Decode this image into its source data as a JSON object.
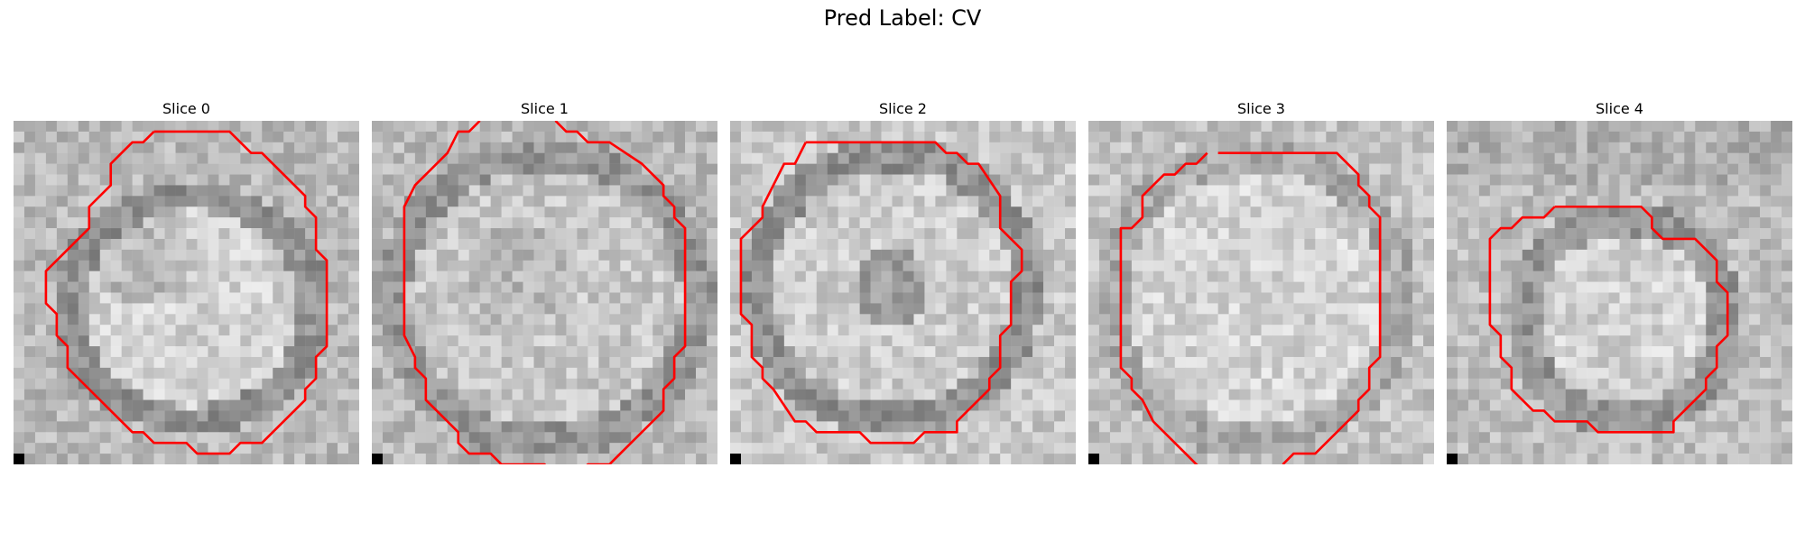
{
  "figure": {
    "title": "Pred Label: CV",
    "overlay_color": "#ff0000"
  },
  "panels": [
    {
      "label": "Slice 0",
      "seed": 11,
      "pattern": "ring-blob",
      "contour": [
        [
          13,
          1
        ],
        [
          20,
          1
        ],
        [
          22,
          3
        ],
        [
          23,
          3
        ],
        [
          27,
          7
        ],
        [
          27,
          8
        ],
        [
          28,
          9
        ],
        [
          28,
          12
        ],
        [
          29,
          13
        ],
        [
          29,
          21
        ],
        [
          28,
          22
        ],
        [
          28,
          24
        ],
        [
          27,
          25
        ],
        [
          27,
          26
        ],
        [
          23,
          30
        ],
        [
          21,
          30
        ],
        [
          20,
          31
        ],
        [
          17,
          31
        ],
        [
          16,
          30
        ],
        [
          13,
          30
        ],
        [
          12,
          29
        ],
        [
          11,
          29
        ],
        [
          6,
          24
        ],
        [
          5,
          23
        ],
        [
          5,
          21
        ],
        [
          4,
          20
        ],
        [
          4,
          18
        ],
        [
          3,
          17
        ],
        [
          3,
          14
        ],
        [
          6,
          11
        ],
        [
          7,
          10
        ],
        [
          7,
          8
        ],
        [
          9,
          6
        ],
        [
          9,
          4
        ],
        [
          10,
          3
        ],
        [
          11,
          2
        ],
        [
          12,
          2
        ]
      ]
    },
    {
      "label": "Slice 1",
      "seed": 23,
      "pattern": "ring-large",
      "contour": [
        [
          10,
          0
        ],
        [
          9,
          1
        ],
        [
          8,
          1
        ],
        [
          7,
          3
        ],
        [
          4,
          6
        ],
        [
          3,
          8
        ],
        [
          3,
          20
        ],
        [
          4,
          22
        ],
        [
          4,
          23
        ],
        [
          5,
          24
        ],
        [
          5,
          26
        ],
        [
          6,
          27
        ],
        [
          7,
          28
        ],
        [
          8,
          29
        ],
        [
          8,
          30
        ],
        [
          9,
          31
        ],
        [
          11,
          31
        ],
        [
          12,
          32
        ],
        [
          16,
          32
        ],
        [
          16,
          33
        ],
        null,
        [
          19,
          33
        ],
        [
          20,
          32
        ],
        [
          22,
          32
        ],
        [
          23,
          31
        ],
        [
          26,
          28
        ],
        [
          27,
          27
        ],
        [
          27,
          25
        ],
        [
          28,
          24
        ],
        [
          28,
          22
        ],
        [
          29,
          21
        ],
        [
          29,
          10
        ],
        [
          28,
          9
        ],
        [
          28,
          8
        ],
        [
          27,
          7
        ],
        [
          27,
          6
        ],
        [
          26,
          5
        ],
        [
          25,
          4
        ],
        [
          22,
          2
        ],
        [
          20,
          2
        ],
        [
          19,
          1
        ],
        [
          18,
          1
        ],
        [
          17,
          0
        ]
      ]
    },
    {
      "label": "Slice 2",
      "seed": 37,
      "pattern": "ring-donut",
      "contour": [
        [
          7,
          2
        ],
        [
          19,
          2
        ],
        [
          20,
          3
        ],
        [
          21,
          3
        ],
        [
          22,
          4
        ],
        [
          23,
          4
        ],
        [
          25,
          7
        ],
        [
          25,
          10
        ],
        [
          27,
          12
        ],
        [
          27,
          14
        ],
        [
          26,
          15
        ],
        [
          26,
          19
        ],
        [
          25,
          20
        ],
        [
          25,
          23
        ],
        [
          24,
          24
        ],
        [
          24,
          25
        ],
        [
          23,
          26
        ],
        [
          22,
          27
        ],
        [
          21,
          28
        ],
        [
          21,
          29
        ],
        [
          18,
          29
        ],
        [
          17,
          30
        ],
        [
          13,
          30
        ],
        [
          12,
          29
        ],
        [
          8,
          29
        ],
        [
          7,
          28
        ],
        [
          6,
          28
        ],
        [
          4,
          25
        ],
        [
          3,
          24
        ],
        [
          3,
          23
        ],
        [
          2,
          22
        ],
        [
          2,
          19
        ],
        [
          1,
          18
        ],
        [
          1,
          11
        ],
        [
          3,
          9
        ],
        [
          3,
          8
        ],
        [
          4,
          6
        ],
        [
          5,
          4
        ],
        [
          6,
          4
        ]
      ]
    },
    {
      "label": "Slice 3",
      "seed": 53,
      "pattern": "disc",
      "contour": [
        [
          12,
          3
        ],
        [
          23,
          3
        ],
        [
          25,
          5
        ],
        [
          25,
          6
        ],
        [
          26,
          7
        ],
        [
          26,
          8
        ],
        [
          27,
          9
        ],
        [
          27,
          22
        ],
        [
          26,
          23
        ],
        [
          26,
          25
        ],
        [
          25,
          26
        ],
        [
          25,
          27
        ],
        [
          24,
          28
        ],
        [
          21,
          31
        ],
        [
          19,
          31
        ],
        [
          18,
          32
        ],
        null,
        [
          11,
          33
        ],
        [
          10,
          32
        ],
        [
          9,
          31
        ],
        [
          6,
          28
        ],
        [
          5,
          26
        ],
        [
          4,
          25
        ],
        [
          4,
          24
        ],
        [
          3,
          23
        ],
        [
          3,
          10
        ],
        [
          4,
          10
        ],
        [
          5,
          9
        ],
        [
          5,
          7
        ],
        [
          6,
          6
        ],
        [
          7,
          5
        ],
        [
          8,
          5
        ],
        [
          9,
          4
        ],
        [
          10,
          4
        ],
        [
          11,
          3
        ]
      ]
    },
    {
      "label": "Slice 4",
      "seed": 71,
      "pattern": "ring-small",
      "contour": [
        [
          10,
          8
        ],
        [
          18,
          8
        ],
        [
          19,
          9
        ],
        [
          19,
          10
        ],
        [
          20,
          11
        ],
        [
          23,
          11
        ],
        [
          25,
          13
        ],
        [
          25,
          15
        ],
        [
          26,
          16
        ],
        [
          26,
          20
        ],
        [
          25,
          21
        ],
        [
          25,
          23
        ],
        [
          24,
          24
        ],
        [
          24,
          25
        ],
        [
          23,
          26
        ],
        [
          22,
          27
        ],
        [
          21,
          28
        ],
        [
          21,
          29
        ],
        [
          14,
          29
        ],
        [
          13,
          28
        ],
        [
          10,
          28
        ],
        [
          9,
          27
        ],
        [
          8,
          27
        ],
        [
          6,
          25
        ],
        [
          6,
          23
        ],
        [
          5,
          22
        ],
        [
          5,
          20
        ],
        [
          4,
          19
        ],
        [
          4,
          11
        ],
        [
          5,
          10
        ],
        [
          6,
          10
        ],
        [
          7,
          9
        ],
        [
          9,
          9
        ]
      ]
    }
  ]
}
